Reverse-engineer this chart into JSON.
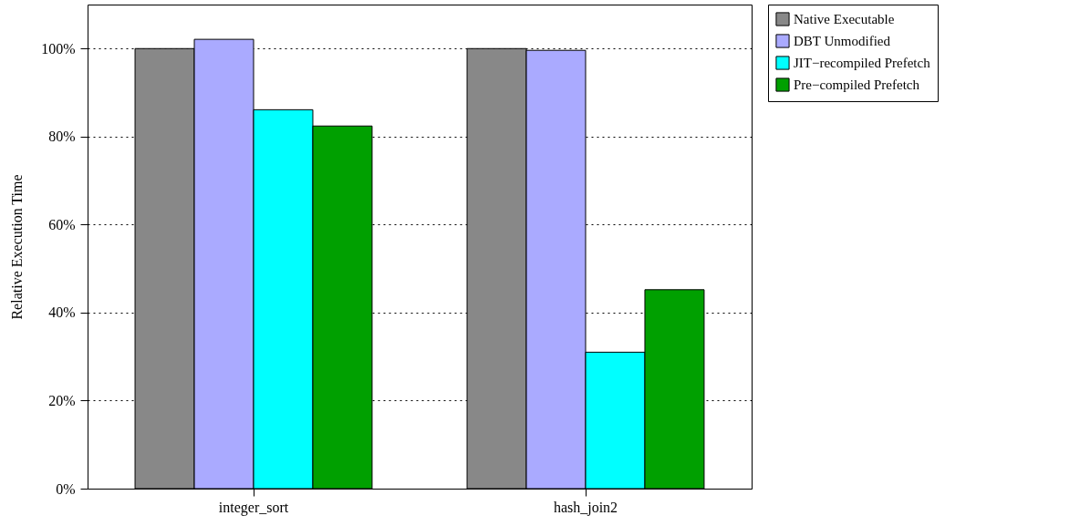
{
  "chart_data": {
    "type": "bar",
    "ylabel": "Relative Execution Time",
    "categories": [
      "integer_sort",
      "hash_join2"
    ],
    "series": [
      {
        "name": "Native Executable",
        "color": "#888888",
        "values": [
          100,
          100
        ]
      },
      {
        "name": "DBT Unmodified",
        "color": "#aaaaff",
        "values": [
          102.1,
          99.6
        ]
      },
      {
        "name": "JIT−recompiled Prefetch",
        "color": "#00ffff",
        "values": [
          86.1,
          31.0
        ]
      },
      {
        "name": "Pre−compiled Prefetch",
        "color": "#00a000",
        "values": [
          82.4,
          45.2
        ]
      }
    ],
    "ylim": [
      0,
      110
    ],
    "yticks": [
      {
        "value": 0,
        "label": "0%"
      },
      {
        "value": 20,
        "label": "20%"
      },
      {
        "value": 40,
        "label": "40%"
      },
      {
        "value": 60,
        "label": "60%"
      },
      {
        "value": 80,
        "label": "80%"
      },
      {
        "value": 100,
        "label": "100%"
      }
    ],
    "grid": "y",
    "legend": "right"
  }
}
